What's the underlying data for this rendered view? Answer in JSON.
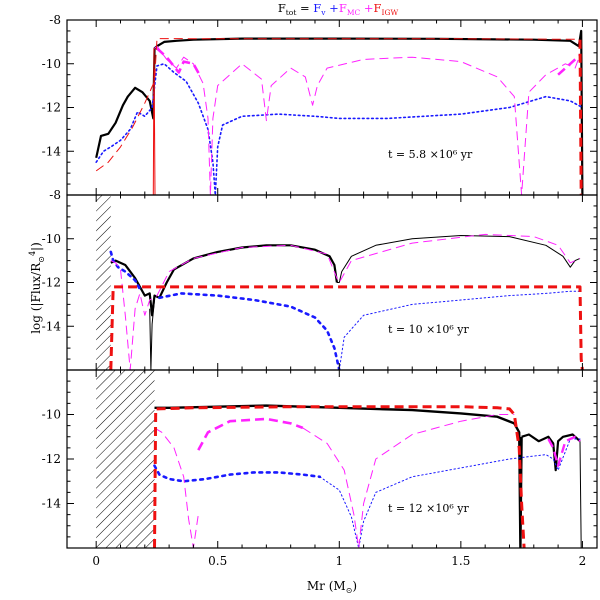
{
  "figure": {
    "title_parts": [
      {
        "text": "F",
        "sub": "tot",
        "suffix": " = ",
        "color": "#000000"
      },
      {
        "text": "F",
        "sub": "v",
        "suffix": " +",
        "color": "#1a1aff"
      },
      {
        "text": "F",
        "sub": "MC",
        "suffix": " +",
        "color": "#ff22ff"
      },
      {
        "text": "F",
        "sub": "IGW",
        "suffix": "",
        "color": "#ee1111"
      }
    ],
    "xlabel_main": "Mr",
    "xlabel_unit": "(M",
    "xlabel_unit_close": ")",
    "ylabel_main": "log (|Flux/R",
    "ylabel_sup": "4",
    "ylabel_close": "|)"
  },
  "colors": {
    "total": "#000000",
    "viscous": "#1a1aff",
    "meridional": "#ff22ff",
    "igw": "#ee1111"
  },
  "chart_data": [
    {
      "type": "line",
      "panel": "top",
      "annotation": "t = 5.8 ×10⁶ yr",
      "xlim": [
        -0.12,
        2.06
      ],
      "ylim": [
        -16,
        -8
      ],
      "xticks": [
        0,
        0.5,
        1,
        1.5,
        2
      ],
      "yticks": [
        -8,
        -10,
        -12,
        -14
      ],
      "hatch_region": null,
      "series": [
        {
          "key": "total",
          "style": "solid",
          "width": 2.2,
          "x": [
            0.0,
            0.02,
            0.05,
            0.08,
            0.11,
            0.13,
            0.16,
            0.19,
            0.22,
            0.235,
            0.24,
            0.25,
            0.28,
            0.33,
            0.4,
            0.6,
            1.0,
            1.4,
            1.8,
            1.95,
            1.985,
            1.995,
            2.0
          ],
          "y": [
            -14.3,
            -13.3,
            -13.2,
            -12.7,
            -11.9,
            -11.5,
            -11.1,
            -11.3,
            -11.7,
            -12.5,
            -9.3,
            -9.2,
            -9.0,
            -8.95,
            -8.9,
            -8.85,
            -8.85,
            -8.86,
            -8.9,
            -8.95,
            -9.2,
            -8.5,
            -16.0
          ]
        },
        {
          "key": "viscous",
          "style": "dotted",
          "width": 1.6,
          "x": [
            0.0,
            0.03,
            0.06,
            0.1,
            0.14,
            0.17,
            0.2,
            0.23,
            0.25,
            0.28,
            0.32,
            0.37,
            0.42,
            0.46,
            0.48,
            0.49,
            0.5,
            0.52,
            0.6,
            0.75,
            0.9,
            1.0,
            1.2,
            1.5,
            1.7,
            1.85,
            1.95,
            2.0
          ],
          "y": [
            -14.5,
            -14.0,
            -13.8,
            -13.5,
            -13.0,
            -12.2,
            -12.4,
            -12.0,
            -10.1,
            -10.0,
            -10.4,
            -10.8,
            -11.8,
            -13.0,
            -14.5,
            -16.0,
            -13.8,
            -12.8,
            -12.4,
            -12.3,
            -12.4,
            -12.5,
            -12.5,
            -12.3,
            -12.0,
            -11.5,
            -11.7,
            -12.0
          ]
        },
        {
          "key": "meridional",
          "style": "dashed",
          "width": 1.0,
          "x": [
            0.24,
            0.25,
            0.29,
            0.33,
            0.36,
            0.4,
            0.44,
            0.46,
            0.47,
            0.48,
            0.5,
            0.6,
            0.68,
            0.7,
            0.72,
            0.8,
            0.86,
            0.89,
            0.91,
            0.95,
            1.1,
            1.3,
            1.5,
            1.65,
            1.72,
            1.75,
            1.78,
            1.85,
            1.93,
            1.97,
            1.99
          ],
          "y": [
            -9.3,
            -9.2,
            -9.8,
            -10.2,
            -9.7,
            -10.0,
            -10.9,
            -12.5,
            -16.0,
            -12.5,
            -11.0,
            -10.0,
            -10.7,
            -12.6,
            -11.0,
            -10.2,
            -10.6,
            -11.9,
            -11.0,
            -10.2,
            -9.8,
            -9.7,
            -9.9,
            -10.6,
            -11.5,
            -16.0,
            -11.3,
            -10.5,
            -10.0,
            -10.2,
            -9.6
          ]
        },
        {
          "key": "meridional",
          "style": "dashed",
          "width": 2.6,
          "x": [
            0.25,
            0.29,
            0.34,
            0.36,
            0.4,
            0.43
          ],
          "y": [
            -9.3,
            -9.7,
            -10.4,
            -9.9,
            -10.0,
            -10.6
          ]
        },
        {
          "key": "meridional",
          "style": "dashed",
          "width": 2.6,
          "x": [
            1.9,
            1.95,
            1.99
          ],
          "y": [
            -10.5,
            -10.0,
            -9.6
          ]
        },
        {
          "key": "igw",
          "style": "dashed",
          "width": 1.0,
          "x": [
            0.0,
            0.05,
            0.1,
            0.15,
            0.2,
            0.24,
            0.25,
            0.5,
            1.0,
            1.5,
            1.98,
            1.99
          ],
          "y": [
            -14.9,
            -14.5,
            -13.8,
            -12.9,
            -11.8,
            -10.8,
            -8.85,
            -8.86,
            -8.86,
            -8.86,
            -8.88,
            -8.9
          ]
        },
        {
          "key": "igw",
          "style": "dashed",
          "width": 3.0,
          "x": [
            1.99,
            1.995,
            2.0
          ],
          "y": [
            -8.9,
            -16.0,
            -16.0
          ]
        },
        {
          "key": "igw",
          "style": "solid",
          "width": 1.0,
          "x": [
            0.235,
            0.238,
            0.242
          ],
          "y": [
            -16.0,
            -9.3,
            -16.0
          ]
        }
      ]
    },
    {
      "type": "line",
      "panel": "middle",
      "annotation": "t = 10 ×10⁶ yr",
      "xlim": [
        -0.12,
        2.06
      ],
      "ylim": [
        -16,
        -8
      ],
      "xticks": [
        0,
        0.5,
        1,
        1.5,
        2
      ],
      "yticks": [
        -8,
        -10,
        -12,
        -14
      ],
      "hatch_region": [
        0.0,
        0.06
      ],
      "series": [
        {
          "key": "total",
          "style": "solid",
          "width": 2.2,
          "x": [
            0.06,
            0.08,
            0.12,
            0.16,
            0.2,
            0.22,
            0.23,
            0.24,
            0.26,
            0.29,
            0.32,
            0.4,
            0.5,
            0.6,
            0.7,
            0.8,
            0.9,
            0.96,
            0.98,
            0.99
          ],
          "y": [
            -11.1,
            -11.0,
            -11.2,
            -11.8,
            -12.6,
            -12.5,
            -13.5,
            -12.6,
            -12.7,
            -12.0,
            -11.4,
            -10.9,
            -10.6,
            -10.4,
            -10.3,
            -10.3,
            -10.5,
            -10.8,
            -11.2,
            -12.0
          ]
        },
        {
          "key": "total",
          "style": "solid",
          "width": 1.0,
          "x": [
            0.99,
            1.0,
            1.01,
            1.05,
            1.15,
            1.3,
            1.5,
            1.7,
            1.85,
            1.92,
            1.95,
            1.97,
            1.99
          ],
          "y": [
            -12.0,
            -12.0,
            -11.5,
            -10.8,
            -10.3,
            -10.0,
            -9.85,
            -9.9,
            -10.3,
            -10.8,
            -11.3,
            -11.0,
            -10.9
          ]
        },
        {
          "key": "total",
          "style": "solid",
          "width": 1.0,
          "x": [
            0.22,
            0.225,
            0.23,
            0.24
          ],
          "y": [
            -13.2,
            -16.0,
            -13.9,
            -12.8
          ]
        },
        {
          "key": "viscous",
          "style": "dotted",
          "width": 2.6,
          "x": [
            0.06,
            0.07,
            0.09,
            0.12,
            0.16,
            0.18
          ],
          "y": [
            -10.6,
            -11.0,
            -11.3,
            -11.5,
            -11.9,
            -12.3
          ]
        },
        {
          "key": "viscous",
          "style": "dotted",
          "width": 2.6,
          "x": [
            0.26,
            0.35,
            0.5,
            0.65,
            0.8,
            0.9,
            0.95,
            0.98,
            1.0
          ],
          "y": [
            -12.7,
            -12.5,
            -12.6,
            -12.8,
            -13.1,
            -13.6,
            -14.2,
            -15.0,
            -16.0
          ]
        },
        {
          "key": "viscous",
          "style": "dotted",
          "width": 1.0,
          "x": [
            1.0,
            1.02,
            1.1,
            1.3,
            1.5,
            1.7,
            1.85,
            1.95,
            1.99
          ],
          "y": [
            -16.0,
            -14.5,
            -13.5,
            -13.0,
            -12.8,
            -12.6,
            -12.5,
            -12.4,
            -12.4
          ]
        },
        {
          "key": "meridional",
          "style": "dashed",
          "width": 1.0,
          "x": [
            0.06,
            0.08,
            0.1,
            0.12,
            0.14,
            0.16,
            0.18,
            0.2,
            0.22,
            0.25,
            0.3,
            0.4,
            0.6,
            0.8,
            0.95,
            0.99,
            1.0,
            1.05,
            1.3,
            1.6,
            1.8,
            1.9,
            1.95,
            1.99
          ],
          "y": [
            -11.0,
            -11.1,
            -11.4,
            -13.5,
            -16.0,
            -13.2,
            -12.5,
            -13.5,
            -12.8,
            -12.6,
            -11.5,
            -10.9,
            -10.4,
            -10.3,
            -10.7,
            -11.8,
            -12.0,
            -11.0,
            -10.2,
            -9.8,
            -9.9,
            -10.3,
            -11.1,
            -10.9
          ]
        },
        {
          "key": "igw",
          "style": "dashed",
          "width": 3.0,
          "x": [
            0.06,
            0.07,
            0.5,
            1.0,
            1.5,
            1.99,
            1.995,
            2.0
          ],
          "y": [
            -16.0,
            -12.2,
            -12.2,
            -12.2,
            -12.2,
            -12.2,
            -15.5,
            -16.0
          ]
        }
      ]
    },
    {
      "type": "line",
      "panel": "bottom",
      "annotation": "t = 12 ×10⁶ yr",
      "xlim": [
        -0.12,
        2.06
      ],
      "ylim": [
        -16,
        -8
      ],
      "xticks": [
        0,
        0.5,
        1,
        1.5,
        2
      ],
      "yticks": [
        -10,
        -12,
        -14
      ],
      "hatch_region": [
        0.0,
        0.24
      ],
      "series": [
        {
          "key": "total",
          "style": "solid",
          "width": 2.4,
          "x": [
            0.24,
            0.3,
            0.5,
            0.7,
            1.0,
            1.3,
            1.5,
            1.65,
            1.72,
            1.74,
            1.745,
            1.75
          ],
          "y": [
            -9.7,
            -9.7,
            -9.65,
            -9.6,
            -9.7,
            -9.8,
            -9.95,
            -10.1,
            -10.4,
            -10.8,
            -16.0,
            -11.0
          ]
        },
        {
          "key": "total",
          "style": "solid",
          "width": 2.2,
          "x": [
            1.75,
            1.78,
            1.82,
            1.86,
            1.88,
            1.89,
            1.9,
            1.92,
            1.96,
            1.99
          ],
          "y": [
            -11.0,
            -10.9,
            -11.2,
            -11.0,
            -11.3,
            -12.5,
            -11.2,
            -11.0,
            -10.9,
            -11.2
          ]
        },
        {
          "key": "total",
          "style": "solid",
          "width": 1.0,
          "x": [
            1.99,
            1.995,
            2.0
          ],
          "y": [
            -11.2,
            -16.0,
            -16.0
          ]
        },
        {
          "key": "viscous",
          "style": "dotted",
          "width": 2.6,
          "x": [
            0.24,
            0.26,
            0.3,
            0.36,
            0.45,
            0.55,
            0.65,
            0.75,
            0.85,
            0.92
          ],
          "y": [
            -12.3,
            -12.7,
            -12.9,
            -13.0,
            -12.9,
            -12.7,
            -12.6,
            -12.6,
            -12.7,
            -12.8
          ]
        },
        {
          "key": "viscous",
          "style": "dotted",
          "width": 1.0,
          "x": [
            0.92,
            1.0,
            1.05,
            1.08,
            1.1,
            1.15,
            1.3,
            1.5,
            1.7,
            1.85,
            1.88,
            1.9,
            1.95,
            1.99
          ],
          "y": [
            -12.8,
            -13.4,
            -14.6,
            -16.0,
            -14.8,
            -13.5,
            -12.8,
            -12.4,
            -12.0,
            -11.8,
            -12.0,
            -12.5,
            -11.1,
            -11.1
          ]
        },
        {
          "key": "meridional",
          "style": "dashed",
          "width": 1.0,
          "x": [
            0.24,
            0.27,
            0.32,
            0.36,
            0.38,
            0.4,
            0.42
          ],
          "y": [
            -10.6,
            -10.8,
            -11.5,
            -12.8,
            -14.7,
            -16.0,
            -14.5
          ]
        },
        {
          "key": "meridional",
          "style": "dashed",
          "width": 2.6,
          "x": [
            0.42,
            0.46,
            0.55,
            0.7,
            0.8,
            0.85
          ],
          "y": [
            -11.6,
            -10.8,
            -10.3,
            -10.2,
            -10.4,
            -10.6
          ]
        },
        {
          "key": "meridional",
          "style": "dashed",
          "width": 1.0,
          "x": [
            0.85,
            0.95,
            1.02,
            1.06,
            1.08,
            1.1,
            1.15,
            1.3,
            1.5,
            1.65,
            1.72
          ],
          "y": [
            -10.6,
            -11.3,
            -12.5,
            -14.5,
            -16.0,
            -14.0,
            -12.0,
            -10.9,
            -10.3,
            -10.0,
            -10.0
          ]
        },
        {
          "key": "meridional",
          "style": "dashed",
          "width": 2.4,
          "x": [
            1.86,
            1.88,
            1.9,
            1.93,
            1.97,
            1.99
          ],
          "y": [
            -11.1,
            -11.5,
            -12.3,
            -11.2,
            -11.0,
            -11.2
          ]
        },
        {
          "key": "igw",
          "style": "dashed",
          "width": 3.0,
          "x": [
            0.24,
            0.245,
            0.4,
            0.8,
            1.2,
            1.5,
            1.65,
            1.7,
            1.72,
            1.74,
            1.75,
            1.76
          ],
          "y": [
            -16.0,
            -9.75,
            -9.7,
            -9.65,
            -9.65,
            -9.65,
            -9.7,
            -9.75,
            -10.0,
            -11.5,
            -14.0,
            -16.0
          ]
        }
      ]
    }
  ]
}
